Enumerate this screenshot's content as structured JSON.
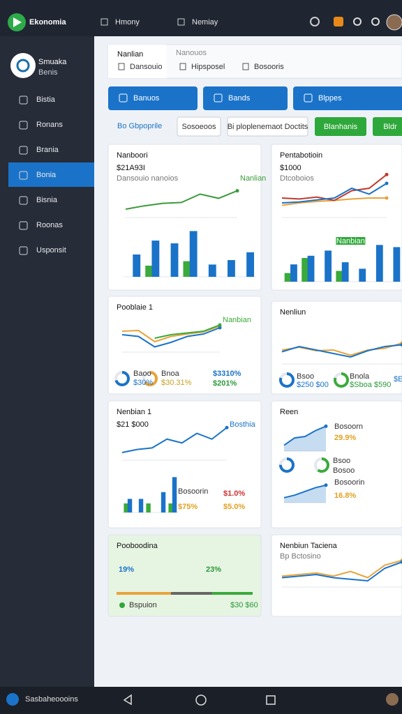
{
  "app": {
    "name": "Ekonomia",
    "menu": [
      "Hmony",
      "Nemiay"
    ]
  },
  "profile": {
    "name": "Smuaka",
    "role": "Benis"
  },
  "nav": [
    "Bistia",
    "Ronans",
    "Brania",
    "Bonia",
    "Bisnia",
    "Roonas",
    "Usponsit"
  ],
  "active_nav": 3,
  "tabs": {
    "title": "Nanlian",
    "subtitle": "Nanouos",
    "items": [
      "Dansouio",
      "Hipsposel",
      "Bosooris"
    ]
  },
  "buttons": [
    "Banuos",
    "Bands",
    "Blppes"
  ],
  "filters": {
    "link": "Bo Gbpoprile",
    "items": [
      "Sosoeoos",
      "Bi ploplenemaot Doctits"
    ],
    "green": [
      "Blanhanis",
      "Bldr"
    ]
  },
  "cards": [
    {
      "title": "Nanboori",
      "value": "$21A93I",
      "caption": "Dansouio nanoios",
      "charts": [
        {
          "type": "line",
          "label": "Nanlian",
          "ylim": [
            0,
            100
          ],
          "series": [
            {
              "color": "#3a9a3a",
              "values": [
                20,
                28,
                34,
                36,
                56,
                46,
                64
              ]
            }
          ]
        },
        {
          "type": "bar",
          "ylim": [
            0,
            100
          ],
          "series": [
            {
              "color": "#3aaa3a",
              "values": [
                0,
                20,
                0,
                28,
                0,
                0,
                0
              ]
            },
            {
              "color": "#1a73c8",
              "values": [
                40,
                65,
                60,
                82,
                22,
                30,
                44
              ]
            }
          ]
        }
      ]
    },
    {
      "title": "Pentabotioin",
      "value": "$1000",
      "caption": "Dtcoboios",
      "charts": [
        {
          "type": "line",
          "ylim": [
            0,
            100
          ],
          "series": [
            {
              "color": "#e8a33a",
              "values": [
                25,
                30,
                33,
                35,
                38,
                40,
                40
              ]
            },
            {
              "color": "#c0392b",
              "values": [
                40,
                38,
                42,
                35,
                55,
                60,
                88
              ]
            },
            {
              "color": "#1a73c8",
              "values": [
                30,
                32,
                36,
                40,
                60,
                48,
                70
              ]
            }
          ]
        },
        {
          "type": "bar",
          "label": "Nanbian",
          "ylim": [
            0,
            100
          ],
          "series": [
            {
              "color": "#3aaa3a",
              "values": [
                20,
                55,
                0,
                25,
                0,
                0,
                0
              ]
            },
            {
              "color": "#1a73c8",
              "values": [
                40,
                60,
                72,
                45,
                30,
                85,
                80
              ]
            }
          ]
        }
      ]
    },
    {
      "title": "Pooblaie 1",
      "charts": [
        {
          "type": "line",
          "label": "Nanbian",
          "ylim": [
            0,
            100
          ],
          "series": [
            {
              "color": "#e8a33a",
              "values": [
                60,
                62,
                30,
                45,
                52,
                58,
                75
              ]
            },
            {
              "color": "#1a73c8",
              "values": [
                50,
                45,
                15,
                28,
                45,
                52,
                70
              ]
            },
            {
              "color": "#3aaa3a",
              "values": [
                null,
                null,
                40,
                50,
                55,
                60,
                78
              ]
            }
          ]
        }
      ],
      "rings": [
        {
          "color": "#1a73c8",
          "value": 70
        },
        {
          "color": "#e8a33a",
          "value": 65
        }
      ],
      "notes": [
        {
          "text": "Baoo",
          "color": "#333333"
        },
        {
          "text": "$30%",
          "color": "#1a73c8"
        },
        {
          "text": "Bnoa",
          "color": "#333333"
        },
        {
          "text": "$30.31%",
          "color": "#c8a020"
        },
        {
          "text": "$3310%",
          "color": "#1a73c8"
        },
        {
          "text": "$201%",
          "color": "#2a9a3a"
        }
      ]
    },
    {
      "title": "Nenliun",
      "charts": [
        {
          "type": "line",
          "ylim": [
            0,
            100
          ],
          "series": [
            {
              "color": "#e8a33a",
              "values": [
                40,
                48,
                38,
                40,
                25,
                40,
                45,
                60
              ]
            },
            {
              "color": "#1a73c8",
              "values": [
                35,
                50,
                40,
                30,
                20,
                38,
                50,
                55
              ]
            }
          ]
        }
      ],
      "rings": [
        {
          "color": "#1a73c8",
          "value": 80
        },
        {
          "color": "#3aaa3a",
          "value": 80
        }
      ],
      "notes": [
        {
          "text": "Bsoo",
          "color": "#333333"
        },
        {
          "text": "$250 $00",
          "color": "#1a73c8"
        },
        {
          "text": "Bnola",
          "color": "#333333"
        },
        {
          "text": "$Sboa $590",
          "color": "#2a9a3a"
        },
        {
          "text": "$Etoit",
          "color": "#1a73c8"
        }
      ]
    },
    {
      "title": "Nenbian 1",
      "value": "$21 $000",
      "charts": [
        {
          "type": "line",
          "label": "Bosthia",
          "ylim": [
            0,
            100
          ],
          "series": [
            {
              "color": "#1a73c8",
              "values": [
                20,
                28,
                32,
                55,
                45,
                70,
                55,
                85
              ]
            }
          ]
        },
        {
          "type": "bar",
          "ylim": [
            0,
            100
          ],
          "series": [
            {
              "color": "#3aaa3a",
              "values": [
                20,
                0,
                20,
                0,
                20
              ]
            },
            {
              "color": "#1a73c8",
              "values": [
                30,
                30,
                0,
                45,
                78
              ]
            }
          ]
        }
      ],
      "notes": [
        {
          "text": "Bosoorin",
          "color": "#333333"
        },
        {
          "text": "$75%",
          "color": "#e0a020"
        },
        {
          "text": "$1.0%",
          "color": "#d03030"
        },
        {
          "text": "$5.0%",
          "color": "#e0a020"
        }
      ]
    },
    {
      "title": "Reen",
      "charts": [
        {
          "type": "area",
          "ylim": [
            0,
            100
          ],
          "series": [
            {
              "color": "#1a73c8",
              "values": [
                20,
                45,
                50,
                70,
                85
              ]
            }
          ]
        },
        {
          "type": "area",
          "ylim": [
            0,
            100
          ],
          "series": [
            {
              "color": "#1a73c8",
              "values": [
                20,
                30,
                45,
                60,
                70
              ]
            }
          ]
        }
      ],
      "rings": [
        {
          "color": "#1a73c8",
          "value": 75
        },
        {
          "color": "#3aaa3a",
          "value": 60
        }
      ],
      "notes": [
        {
          "text": "Bosoorn",
          "color": "#333333"
        },
        {
          "text": "29.9%",
          "color": "#e0a020"
        },
        {
          "text": "Bosoorin",
          "color": "#333333"
        },
        {
          "text": "16.8%",
          "color": "#e0a020"
        },
        {
          "text": "Bsoo",
          "color": "#333333"
        },
        {
          "text": "Bosoo",
          "color": "#333333"
        }
      ]
    },
    {
      "title": "Pooboodina",
      "progress": [
        {
          "color": "#e8a33a",
          "value": 40
        },
        {
          "color": "#666666",
          "value": 30
        },
        {
          "color": "#3aaa3a",
          "value": 30
        }
      ],
      "notes": [
        {
          "text": "19%",
          "color": "#1a73c8"
        },
        {
          "text": "23%",
          "color": "#2a9a3a"
        },
        {
          "text": "Bspuion",
          "color": "#333333"
        },
        {
          "text": "$30 $60",
          "color": "#2a9a3a"
        }
      ]
    },
    {
      "title": "Nenbiun Taciena",
      "caption": "Bp Bctosino",
      "charts": [
        {
          "type": "line",
          "ylim": [
            0,
            100
          ],
          "series": [
            {
              "color": "#e8a33a",
              "values": [
                35,
                40,
                45,
                35,
                50,
                30,
                70,
                85
              ]
            },
            {
              "color": "#1a73c8",
              "values": [
                30,
                35,
                40,
                30,
                25,
                20,
                60,
                80
              ]
            }
          ]
        }
      ]
    }
  ],
  "footer": "Sasbaheoooins"
}
